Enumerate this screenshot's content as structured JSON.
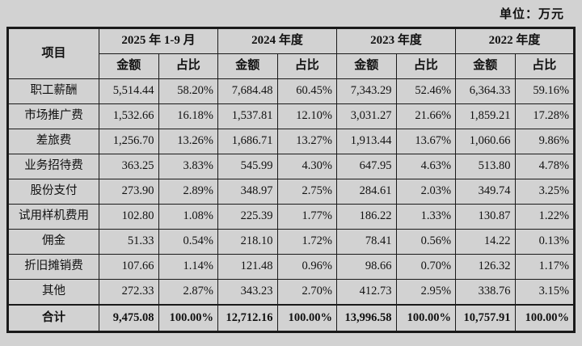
{
  "unit_label": "单位：万元",
  "table": {
    "item_header": "项目",
    "amount_header": "金额",
    "ratio_header": "占比",
    "periods": [
      "2025 年 1-9 月",
      "2024 年度",
      "2023 年度",
      "2022 年度"
    ],
    "rows": [
      {
        "item": "职工薪酬",
        "values": [
          "5,514.44",
          "58.20%",
          "7,684.48",
          "60.45%",
          "7,343.29",
          "52.46%",
          "6,364.33",
          "59.16%"
        ]
      },
      {
        "item": "市场推广费",
        "values": [
          "1,532.66",
          "16.18%",
          "1,537.81",
          "12.10%",
          "3,031.27",
          "21.66%",
          "1,859.21",
          "17.28%"
        ]
      },
      {
        "item": "差旅费",
        "values": [
          "1,256.70",
          "13.26%",
          "1,686.71",
          "13.27%",
          "1,913.44",
          "13.67%",
          "1,060.66",
          "9.86%"
        ]
      },
      {
        "item": "业务招待费",
        "values": [
          "363.25",
          "3.83%",
          "545.99",
          "4.30%",
          "647.95",
          "4.63%",
          "513.80",
          "4.78%"
        ]
      },
      {
        "item": "股份支付",
        "values": [
          "273.90",
          "2.89%",
          "348.97",
          "2.75%",
          "284.61",
          "2.03%",
          "349.74",
          "3.25%"
        ]
      },
      {
        "item": "试用样机费用",
        "values": [
          "102.80",
          "1.08%",
          "225.39",
          "1.77%",
          "186.22",
          "1.33%",
          "130.87",
          "1.22%"
        ]
      },
      {
        "item": "佣金",
        "values": [
          "51.33",
          "0.54%",
          "218.10",
          "1.72%",
          "78.41",
          "0.56%",
          "14.22",
          "0.13%"
        ]
      },
      {
        "item": "折旧摊销费",
        "values": [
          "107.66",
          "1.14%",
          "121.48",
          "0.96%",
          "98.66",
          "0.70%",
          "126.32",
          "1.17%"
        ]
      },
      {
        "item": "其他",
        "values": [
          "272.33",
          "2.87%",
          "343.23",
          "2.70%",
          "412.73",
          "2.95%",
          "338.76",
          "3.15%"
        ]
      }
    ],
    "total": {
      "item": "合计",
      "values": [
        "9,475.08",
        "100.00%",
        "12,712.16",
        "100.00%",
        "13,996.58",
        "100.00%",
        "10,757.91",
        "100.00%"
      ]
    }
  }
}
